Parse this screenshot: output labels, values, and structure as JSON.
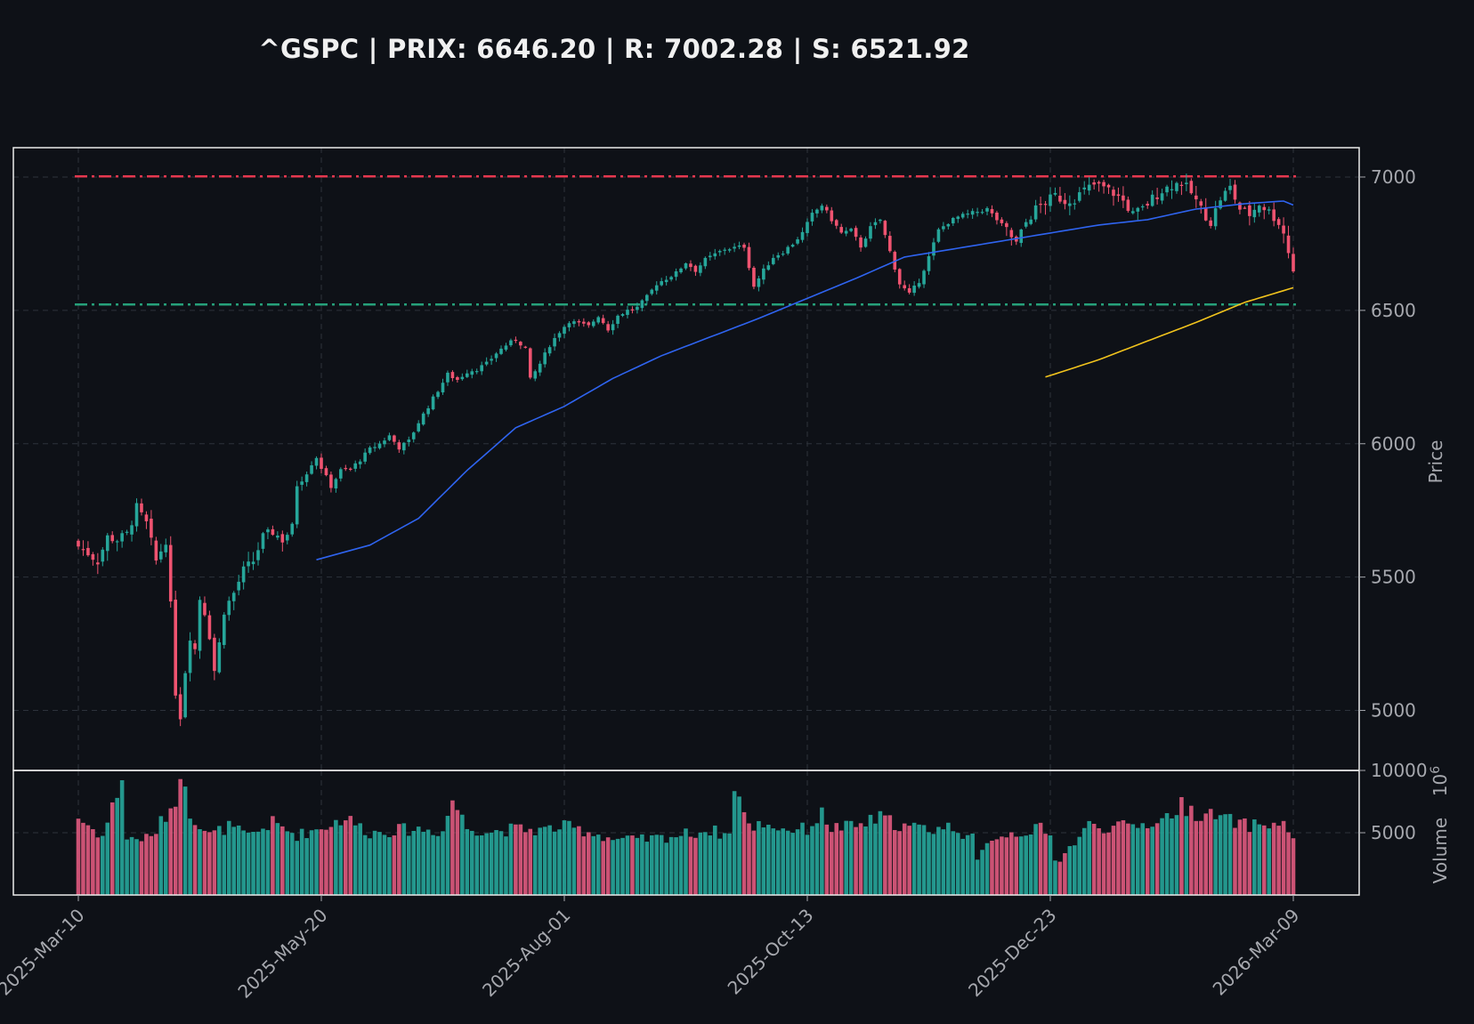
{
  "chart_data": {
    "type": "candlestick",
    "title": "^GSPC | PRIX: 6646.20 | R: 7002.28 | S: 6521.92",
    "price_panel": {
      "ylabel": "Price",
      "ylim": [
        4775,
        7110
      ],
      "yticks": [
        5000,
        5500,
        6000,
        6500,
        7000
      ],
      "resistance": 7002.28,
      "support": 6521.92,
      "last_price": 6646.2
    },
    "volume_panel": {
      "ylabel": "Volume",
      "exponent_label": "10",
      "exponent_power": "6",
      "ylim": [
        0,
        10000
      ],
      "yticks": [
        5000,
        10000
      ]
    },
    "x_ticks": [
      {
        "label": "2025-Mar-10",
        "index": 0
      },
      {
        "label": "2025-May-20",
        "index": 50
      },
      {
        "label": "2025-Aug-01",
        "index": 100
      },
      {
        "label": "2025-Oct-13",
        "index": 150
      },
      {
        "label": "2025-Dec-23",
        "index": 200
      },
      {
        "label": "2026-Mar-09",
        "index": 250
      }
    ],
    "n_bars": 251,
    "close_anchors": [
      [
        0,
        5615
      ],
      [
        2,
        5590
      ],
      [
        4,
        5560
      ],
      [
        6,
        5650
      ],
      [
        8,
        5640
      ],
      [
        10,
        5660
      ],
      [
        12,
        5760
      ],
      [
        14,
        5700
      ],
      [
        16,
        5560
      ],
      [
        18,
        5640
      ],
      [
        19,
        5390
      ],
      [
        20,
        5070
      ],
      [
        21,
        4980
      ],
      [
        22,
        5150
      ],
      [
        23,
        5280
      ],
      [
        24,
        5230
      ],
      [
        25,
        5420
      ],
      [
        26,
        5370
      ],
      [
        27,
        5282
      ],
      [
        28,
        5150
      ],
      [
        29,
        5250
      ],
      [
        30,
        5375
      ],
      [
        32,
        5440
      ],
      [
        34,
        5525
      ],
      [
        36,
        5560
      ],
      [
        38,
        5650
      ],
      [
        40,
        5670
      ],
      [
        42,
        5640
      ],
      [
        44,
        5685
      ],
      [
        45,
        5850
      ],
      [
        47,
        5900
      ],
      [
        49,
        5950
      ],
      [
        50,
        5910
      ],
      [
        52,
        5840
      ],
      [
        54,
        5900
      ],
      [
        56,
        5905
      ],
      [
        58,
        5940
      ],
      [
        60,
        5980
      ],
      [
        62,
        6000
      ],
      [
        64,
        6030
      ],
      [
        66,
        5985
      ],
      [
        68,
        6010
      ],
      [
        70,
        6080
      ],
      [
        72,
        6140
      ],
      [
        74,
        6200
      ],
      [
        76,
        6260
      ],
      [
        78,
        6240
      ],
      [
        80,
        6270
      ],
      [
        82,
        6280
      ],
      [
        84,
        6300
      ],
      [
        86,
        6340
      ],
      [
        88,
        6370
      ],
      [
        90,
        6390
      ],
      [
        92,
        6360
      ],
      [
        93,
        6240
      ],
      [
        95,
        6300
      ],
      [
        97,
        6370
      ],
      [
        99,
        6420
      ],
      [
        101,
        6460
      ],
      [
        103,
        6450
      ],
      [
        105,
        6440
      ],
      [
        107,
        6480
      ],
      [
        109,
        6430
      ],
      [
        111,
        6480
      ],
      [
        113,
        6500
      ],
      [
        115,
        6510
      ],
      [
        117,
        6550
      ],
      [
        119,
        6600
      ],
      [
        121,
        6620
      ],
      [
        123,
        6640
      ],
      [
        125,
        6680
      ],
      [
        127,
        6650
      ],
      [
        129,
        6690
      ],
      [
        131,
        6710
      ],
      [
        133,
        6730
      ],
      [
        135,
        6735
      ],
      [
        137,
        6740
      ],
      [
        139,
        6590
      ],
      [
        141,
        6650
      ],
      [
        143,
        6700
      ],
      [
        145,
        6720
      ],
      [
        147,
        6750
      ],
      [
        149,
        6790
      ],
      [
        151,
        6860
      ],
      [
        153,
        6895
      ],
      [
        155,
        6840
      ],
      [
        157,
        6790
      ],
      [
        159,
        6800
      ],
      [
        161,
        6740
      ],
      [
        163,
        6810
      ],
      [
        165,
        6840
      ],
      [
        167,
        6720
      ],
      [
        169,
        6600
      ],
      [
        171,
        6560
      ],
      [
        173,
        6610
      ],
      [
        175,
        6700
      ],
      [
        177,
        6800
      ],
      [
        179,
        6830
      ],
      [
        181,
        6850
      ],
      [
        183,
        6860
      ],
      [
        185,
        6870
      ],
      [
        187,
        6880
      ],
      [
        189,
        6840
      ],
      [
        191,
        6800
      ],
      [
        193,
        6750
      ],
      [
        195,
        6830
      ],
      [
        197,
        6880
      ],
      [
        199,
        6905
      ],
      [
        201,
        6930
      ],
      [
        203,
        6910
      ],
      [
        205,
        6920
      ],
      [
        207,
        6950
      ],
      [
        209,
        6970
      ],
      [
        211,
        6960
      ],
      [
        213,
        6940
      ],
      [
        215,
        6910
      ],
      [
        217,
        6860
      ],
      [
        219,
        6880
      ],
      [
        221,
        6920
      ],
      [
        223,
        6950
      ],
      [
        225,
        6970
      ],
      [
        227,
        6980
      ],
      [
        229,
        6940
      ],
      [
        231,
        6880
      ],
      [
        233,
        6830
      ],
      [
        235,
        6920
      ],
      [
        237,
        6960
      ],
      [
        239,
        6880
      ],
      [
        241,
        6860
      ],
      [
        243,
        6900
      ],
      [
        245,
        6870
      ],
      [
        247,
        6830
      ],
      [
        248,
        6790
      ],
      [
        249,
        6720
      ],
      [
        250,
        6646
      ]
    ],
    "ma_short_anchors": [
      [
        49,
        5565
      ],
      [
        60,
        5620
      ],
      [
        70,
        5720
      ],
      [
        80,
        5900
      ],
      [
        90,
        6060
      ],
      [
        100,
        6140
      ],
      [
        110,
        6245
      ],
      [
        120,
        6330
      ],
      [
        130,
        6400
      ],
      [
        140,
        6470
      ],
      [
        150,
        6545
      ],
      [
        160,
        6620
      ],
      [
        170,
        6700
      ],
      [
        180,
        6730
      ],
      [
        190,
        6760
      ],
      [
        200,
        6790
      ],
      [
        210,
        6820
      ],
      [
        220,
        6840
      ],
      [
        230,
        6880
      ],
      [
        240,
        6900
      ],
      [
        248,
        6910
      ],
      [
        250,
        6895
      ]
    ],
    "ma_long_anchors": [
      [
        199,
        6250
      ],
      [
        210,
        6315
      ],
      [
        220,
        6385
      ],
      [
        230,
        6455
      ],
      [
        240,
        6530
      ],
      [
        250,
        6585
      ]
    ],
    "volume_anchors": [
      [
        0,
        6200
      ],
      [
        5,
        4700
      ],
      [
        9,
        9400
      ],
      [
        10,
        4500
      ],
      [
        15,
        4600
      ],
      [
        19,
        7000
      ],
      [
        22,
        9500
      ],
      [
        23,
        6600
      ],
      [
        27,
        4800
      ],
      [
        31,
        5500
      ],
      [
        35,
        4700
      ],
      [
        40,
        5800
      ],
      [
        45,
        4800
      ],
      [
        50,
        5400
      ],
      [
        55,
        6200
      ],
      [
        60,
        5000
      ],
      [
        65,
        5200
      ],
      [
        70,
        5300
      ],
      [
        75,
        5100
      ],
      [
        77,
        7700
      ],
      [
        80,
        5400
      ],
      [
        85,
        5100
      ],
      [
        90,
        5300
      ],
      [
        95,
        5200
      ],
      [
        100,
        5500
      ],
      [
        105,
        5100
      ],
      [
        110,
        4500
      ],
      [
        115,
        4400
      ],
      [
        120,
        4600
      ],
      [
        125,
        4900
      ],
      [
        130,
        5200
      ],
      [
        134,
        4800
      ],
      [
        135,
        9000
      ],
      [
        138,
        5400
      ],
      [
        141,
        5800
      ],
      [
        145,
        5300
      ],
      [
        150,
        5300
      ],
      [
        153,
        6500
      ],
      [
        155,
        5400
      ],
      [
        160,
        5500
      ],
      [
        165,
        6200
      ],
      [
        170,
        5500
      ],
      [
        175,
        5300
      ],
      [
        180,
        5500
      ],
      [
        184,
        4500
      ],
      [
        185,
        2700
      ],
      [
        188,
        4700
      ],
      [
        193,
        5000
      ],
      [
        198,
        5300
      ],
      [
        200,
        4600
      ],
      [
        201,
        3000
      ],
      [
        202,
        2900
      ],
      [
        204,
        3800
      ],
      [
        208,
        5600
      ],
      [
        213,
        5400
      ],
      [
        218,
        5600
      ],
      [
        223,
        6000
      ],
      [
        227,
        7200
      ],
      [
        230,
        6600
      ],
      [
        235,
        6200
      ],
      [
        240,
        5600
      ],
      [
        245,
        5700
      ],
      [
        248,
        5600
      ],
      [
        250,
        4700
      ]
    ],
    "colors": {
      "up": "#26a69a",
      "down": "#ef5370",
      "ma_short": "#2f64f0",
      "ma_long": "#f2c41d",
      "resistance": "#e5384f",
      "support": "#26a07a",
      "background": "#0e1117",
      "text": "#f0f0f0",
      "tick_text": "#a6a8ae",
      "grid": "#2d323b",
      "frame": "#ececec"
    }
  }
}
